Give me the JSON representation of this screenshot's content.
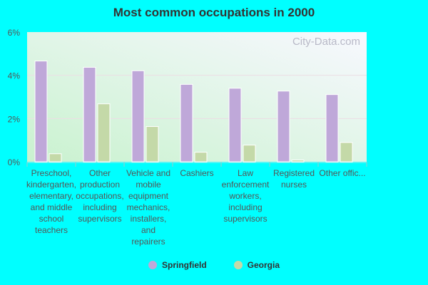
{
  "chart_data": {
    "type": "bar",
    "title": "Most common occupations in 2000",
    "categories": [
      "Preschool, kindergarten, elementary, and middle school teachers",
      "Other production occupations, including supervisors",
      "Vehicle and mobile equipment mechanics, installers, and repairers",
      "Cashiers",
      "Law enforcement workers, including supervisors",
      "Registered nurses",
      "Other offic..."
    ],
    "category_lines": [
      [
        "Preschool,",
        "kindergarten,",
        "elementary,",
        "and middle",
        "school",
        "teachers"
      ],
      [
        "Other",
        "production",
        "occupations,",
        "including",
        "supervisors"
      ],
      [
        "Vehicle and",
        "mobile",
        "equipment",
        "mechanics,",
        "installers,",
        "and",
        "repairers"
      ],
      [
        "Cashiers"
      ],
      [
        "Law",
        "enforcement",
        "workers,",
        "including",
        "supervisors"
      ],
      [
        "Registered",
        "nurses"
      ],
      [
        "Other offic..."
      ]
    ],
    "series": [
      {
        "name": "Springfield",
        "color": "#bfa8d9",
        "values": [
          4.66,
          4.37,
          4.21,
          3.58,
          3.4,
          3.27,
          3.11
        ]
      },
      {
        "name": "Georgia",
        "color": "#c4d9a8",
        "values": [
          0.37,
          2.68,
          1.63,
          0.44,
          0.77,
          0.08,
          0.89
        ]
      }
    ],
    "yticks": [
      "0%",
      "2%",
      "4%",
      "6%"
    ],
    "ylim": [
      0,
      6
    ],
    "grid": true,
    "legend": "bottom",
    "watermark": "City-Data.com"
  }
}
